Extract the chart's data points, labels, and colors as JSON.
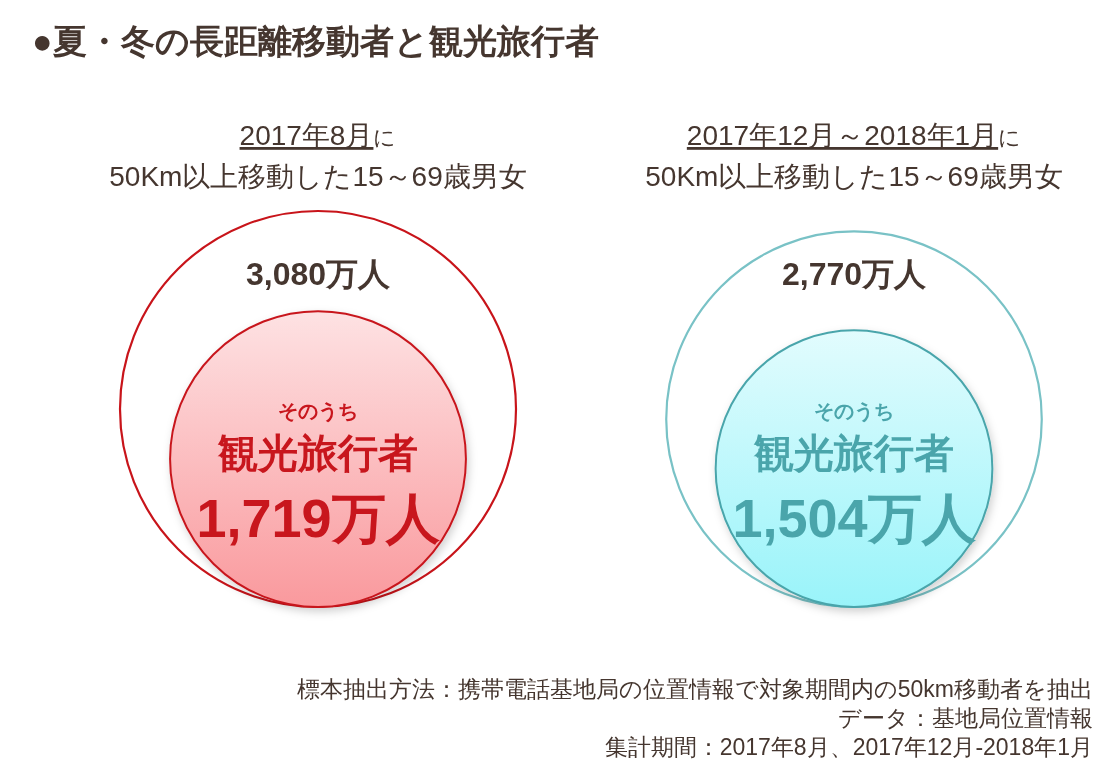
{
  "chart_data": {
    "type": "other",
    "title": "●夏・冬の長距離移動者と観光旅行者",
    "categories": [
      "2017年8月に\n50Km以上移動した15～69歳男女",
      "2017年12月～2018年1月に\n50Km以上移動した15～69歳男女"
    ],
    "series": [
      {
        "colors": [
          "#c8141a",
          "#79c2c6"
        ],
        "values": [
          3080,
          2770
        ],
        "value_labels": [
          "3,080万人",
          "2,770万人"
        ]
      },
      {
        "name": "そのうち観光旅行者",
        "colors": [
          "#c8161d",
          "#4aa5ab"
        ],
        "values": [
          1719,
          1504
        ],
        "value_labels": [
          "1,719万人",
          "1,504万人"
        ]
      }
    ],
    "annotations": [
      "標本抽出方法：携帯電話基地局の位置情報で対象期間内の50km移動者を抽出",
      "データ：基地局位置情報",
      "集計期間：2017年8月、2017年12月-2018年1月"
    ]
  }
}
